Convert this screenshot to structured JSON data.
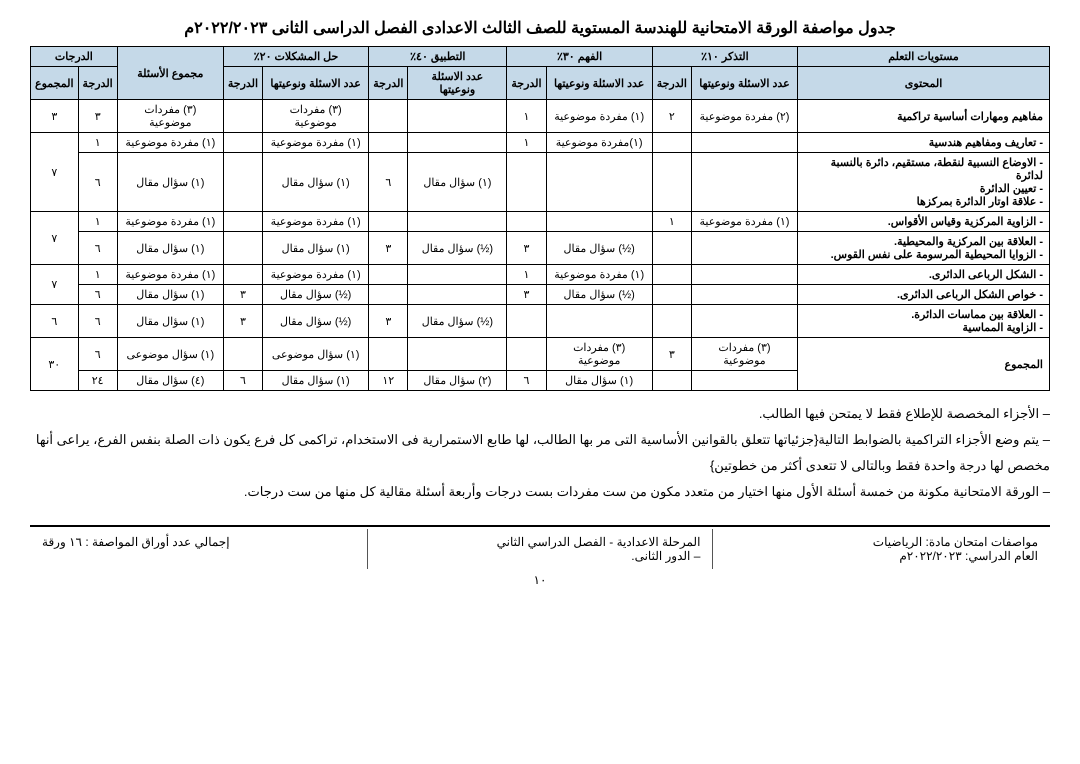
{
  "title": "جدول مواصفة الورقة الامتحانية للهندسة المستوية للصف الثالث الاعدادى الفصل الدراسى الثانى ٢٠٢٢/٢٠٢٣م",
  "headers": {
    "levels": "مستويات التعلم",
    "content": "المحتوى",
    "recall": "التذكر ١٠٪",
    "comp": "الفهم ٣٠٪",
    "apply": "التطبيق ٤٠٪",
    "problem": "حل المشكلات ٢٠٪",
    "qtotal": "مجموع الأسئلة",
    "marks": "الدرجات",
    "qtype": "عدد الاسئلة ونوعيتها",
    "mark": "الدرجة",
    "total": "المجموع"
  },
  "rows": [
    {
      "content": "مفاهيم ومهارات أساسية تراكمية",
      "r_q": "(٢) مفردة موضوعية",
      "r_m": "٢",
      "c_q": "(١) مفردة موضوعية",
      "c_m": "١",
      "a_q": "",
      "a_m": "",
      "p_q": "(٣) مفردات موضوعية",
      "p_m": "",
      "mark": "٣",
      "total": "٣"
    },
    {
      "content": "- تعاريف ومفاهيم هندسية",
      "r_q": "",
      "r_m": "",
      "c_q": "(١)مفردة موضوعية",
      "c_m": "١",
      "a_q": "",
      "a_m": "",
      "p_q": "(١) مفردة موضوعية",
      "p_m": "",
      "mark": "١",
      "total": ""
    },
    {
      "content": "- الاوضاع النسبية لنقطة، مستقيم، دائرة بالنسبة لدائرة\n- تعيين الدائرة\n- علاقة اوتار الدائرة بمركزها",
      "r_q": "",
      "r_m": "",
      "c_q": "",
      "c_m": "",
      "a_q": "(١) سؤال مقال",
      "a_m": "٦",
      "p_q": "(١) سؤال مقال",
      "p_m": "",
      "mark": "٦",
      "total": "٧"
    },
    {
      "content": "- الزاوية المركزية وقياس الأقواس.",
      "r_q": "(١) مفردة موضوعية",
      "r_m": "١",
      "c_q": "",
      "c_m": "",
      "a_q": "",
      "a_m": "",
      "p_q": "(١) مفردة موضوعية",
      "p_m": "",
      "mark": "١",
      "total": ""
    },
    {
      "content": "- العلاقة بين المركزية والمحيطية.\n- الزوايا المحيطية المرسومة على نفس القوس.",
      "r_q": "",
      "r_m": "",
      "c_q": "(½) سؤال مقال",
      "c_m": "٣",
      "a_q": "(½) سؤال مقال",
      "a_m": "٣",
      "p_q": "(١) سؤال مقال",
      "p_m": "",
      "mark": "٦",
      "total": "٧"
    },
    {
      "content": "- الشكل الرباعى الدائرى.",
      "r_q": "",
      "r_m": "",
      "c_q": "(١) مفردة موضوعية",
      "c_m": "١",
      "a_q": "",
      "a_m": "",
      "p_q": "(١) مفردة موضوعية",
      "p_m": "",
      "mark": "١",
      "total": ""
    },
    {
      "content": "- خواص الشكل الرباعى الدائرى.",
      "r_q": "",
      "r_m": "",
      "c_q": "(½) سؤال مقال",
      "c_m": "٣",
      "a_q": "",
      "a_m": "",
      "p_q": "(½) سؤال مقال",
      "p_m": "٣",
      "sum": "(١) سؤال مقال",
      "mark": "٦",
      "total": "٧"
    },
    {
      "content": "- العلاقة بين مماسات الدائرة.\n- الزاوية المماسية",
      "r_q": "",
      "r_m": "",
      "c_q": "",
      "c_m": "",
      "a_q": "(½) سؤال مقال",
      "a_m": "٣",
      "p_q": "(½) سؤال مقال",
      "p_m": "٣",
      "sum": "(١) سؤال مقال",
      "mark": "٦",
      "total": "٦"
    },
    {
      "content": "المجموع",
      "r_q": "(٣) مفردات موضوعية",
      "r_m": "٣",
      "c_q": "(٣) مفردات موضوعية",
      "c_m": "",
      "a_q": "",
      "a_m": "",
      "p_q": "(١) سؤال موضوعى",
      "p_m": "",
      "mark": "٦",
      "total": ""
    },
    {
      "content": "",
      "r_q": "",
      "r_m": "",
      "c_q": "(١) سؤال مقال",
      "c_m": "٦",
      "a_q": "(٢) سؤال مقال",
      "a_m": "١٢",
      "p_q": "(١) سؤال مقال",
      "p_m": "٦",
      "sum": "(٤) سؤال مقال",
      "mark": "٢٤",
      "total": "٣٠"
    }
  ],
  "notes": {
    "n1": "– الأجزاء المخصصة للإطلاع فقط لا يمتحن فيها الطالب.",
    "n2": "– يتم وضع الأجزاء التراكمية بالضوابط التالية{جزئياتها تتعلق بالقوانين الأساسية التى مر بها الطالب، لها طابع الاستمرارية فى الاستخدام، تراكمى كل فرع يكون ذات الصلة بنفس الفرع، يراعى أنها مخصص لها درجة واحدة فقط وبالتالى لا تتعدى أكثر من خطوتين}",
    "n3": "– الورقة الامتحانية مكونة من خمسة أسئلة الأول منها اختيار من متعدد مكون من ست مفردات بست درجات وأربعة أسئلة مقالية كل منها من ست درجات."
  },
  "footer": {
    "subject": "مواصفات امتحان مادة: الرياضيات",
    "year": "العام الدراسي: ٢٠٢٢/٢٠٢٣م",
    "stage": "المرحلة الاعدادية - الفصل الدراسي الثاني",
    "round": "– الدور الثانى.",
    "pages": "إجمالي عدد أوراق المواصفة : ١٦ ورقة",
    "pagenum": "١٠"
  }
}
